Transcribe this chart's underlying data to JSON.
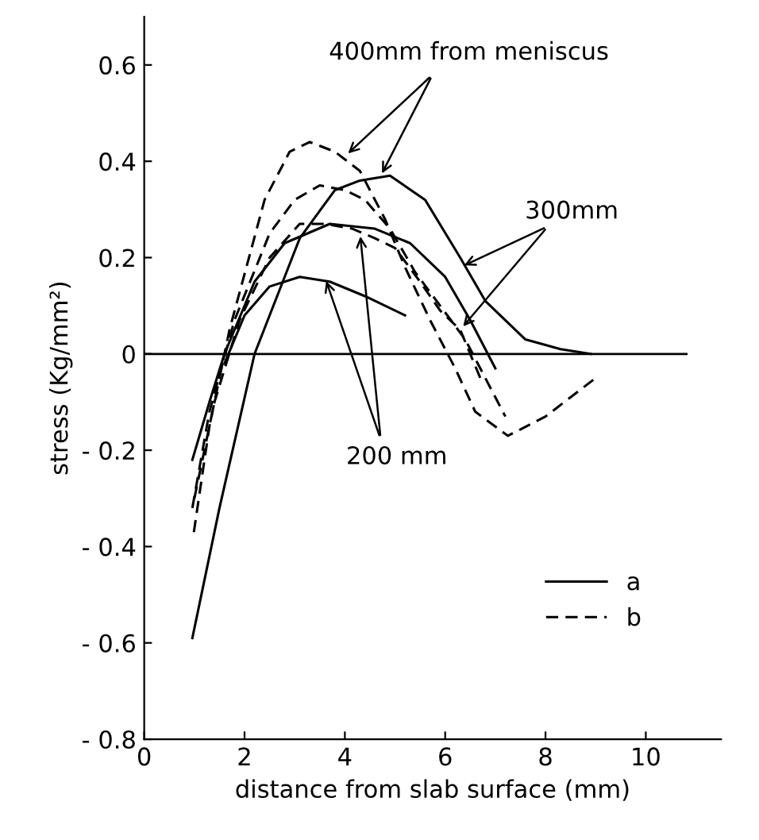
{
  "chart_data": {
    "type": "line",
    "xlabel": "distance from slab surface (mm)",
    "ylabel": "stress (Kg/mm²)",
    "xlim": [
      0,
      11.5
    ],
    "ylim": [
      -0.8,
      0.7
    ],
    "xticks": [
      0,
      2,
      4,
      6,
      8,
      10
    ],
    "yticks": [
      0.6,
      0.4,
      0.2,
      0,
      {
        "value": -0.2,
        "label": "- 0.2"
      },
      {
        "value": -0.4,
        "label": "- 0.4"
      },
      {
        "value": -0.6,
        "label": "- 0.6"
      },
      {
        "value": -0.8,
        "label": "- 0.8"
      }
    ],
    "grid": false,
    "legend": "bottom right",
    "marker": "none",
    "ref_lines": [
      {
        "axis": "y",
        "value": 0,
        "color": "#000000",
        "line_style": "solid"
      }
    ],
    "annotations": [
      {
        "text": "400mm from meniscus",
        "x": 4.0,
        "y": 0.41
      },
      {
        "text": "300mm",
        "x": 6.3,
        "y": 0.18
      },
      {
        "text": "200 mm",
        "x": 3.6,
        "y": 0.16
      }
    ],
    "series": [
      {
        "name": "a",
        "color": "#000000",
        "line_style": "solid",
        "x": [
          0.96,
          1.5,
          2.2,
          3.1,
          3.8,
          4.3,
          4.9,
          5.6,
          6.3,
          6.8,
          7.6,
          8.3,
          8.9
        ],
        "values": [
          -0.59,
          -0.32,
          0.0,
          0.24,
          0.34,
          0.36,
          0.37,
          0.32,
          0.2,
          0.11,
          0.03,
          0.01,
          0.0
        ]
      },
      {
        "color": "#000000",
        "line_style": "solid",
        "x": [
          0.96,
          1.3,
          1.6,
          2.2,
          2.8,
          3.7,
          4.6,
          5.3,
          6.0,
          6.5,
          7.0
        ],
        "values": [
          -0.22,
          -0.1,
          0.0,
          0.15,
          0.23,
          0.27,
          0.26,
          0.23,
          0.16,
          0.07,
          -0.03
        ]
      },
      {
        "color": "#000000",
        "line_style": "solid",
        "x": [
          1.6,
          2.0,
          2.5,
          3.1,
          3.7,
          4.4,
          5.2
        ],
        "values": [
          -0.02,
          0.08,
          0.14,
          0.16,
          0.15,
          0.12,
          0.08
        ]
      },
      {
        "name": "b",
        "color": "#000000",
        "line_style": "dashed",
        "x": [
          0.99,
          1.3,
          1.7,
          2.4,
          2.9,
          3.3,
          3.8,
          4.3,
          4.8,
          5.2,
          5.7,
          6.2,
          6.6,
          7.25,
          8.0,
          9.0
        ],
        "values": [
          -0.37,
          -0.15,
          0.05,
          0.32,
          0.42,
          0.44,
          0.42,
          0.38,
          0.28,
          0.18,
          0.07,
          -0.03,
          -0.12,
          -0.17,
          -0.13,
          -0.05
        ]
      },
      {
        "color": "#000000",
        "line_style": "dashed",
        "x": [
          0.96,
          1.3,
          1.8,
          2.5,
          3.0,
          3.5,
          4.0,
          4.4,
          4.9,
          5.4,
          5.9,
          6.4,
          6.8,
          7.2
        ],
        "values": [
          -0.32,
          -0.12,
          0.07,
          0.25,
          0.32,
          0.35,
          0.34,
          0.32,
          0.26,
          0.17,
          0.1,
          0.03,
          -0.05,
          -0.13
        ]
      },
      {
        "color": "#000000",
        "line_style": "dashed",
        "x": [
          1.0,
          1.4,
          1.9,
          2.5,
          3.1,
          3.6,
          4.15,
          4.6,
          5.0,
          5.5,
          5.9,
          6.3,
          6.7
        ],
        "values": [
          -0.3,
          -0.1,
          0.07,
          0.2,
          0.27,
          0.27,
          0.26,
          0.24,
          0.22,
          0.15,
          0.09,
          0.05,
          -0.05
        ]
      }
    ]
  }
}
